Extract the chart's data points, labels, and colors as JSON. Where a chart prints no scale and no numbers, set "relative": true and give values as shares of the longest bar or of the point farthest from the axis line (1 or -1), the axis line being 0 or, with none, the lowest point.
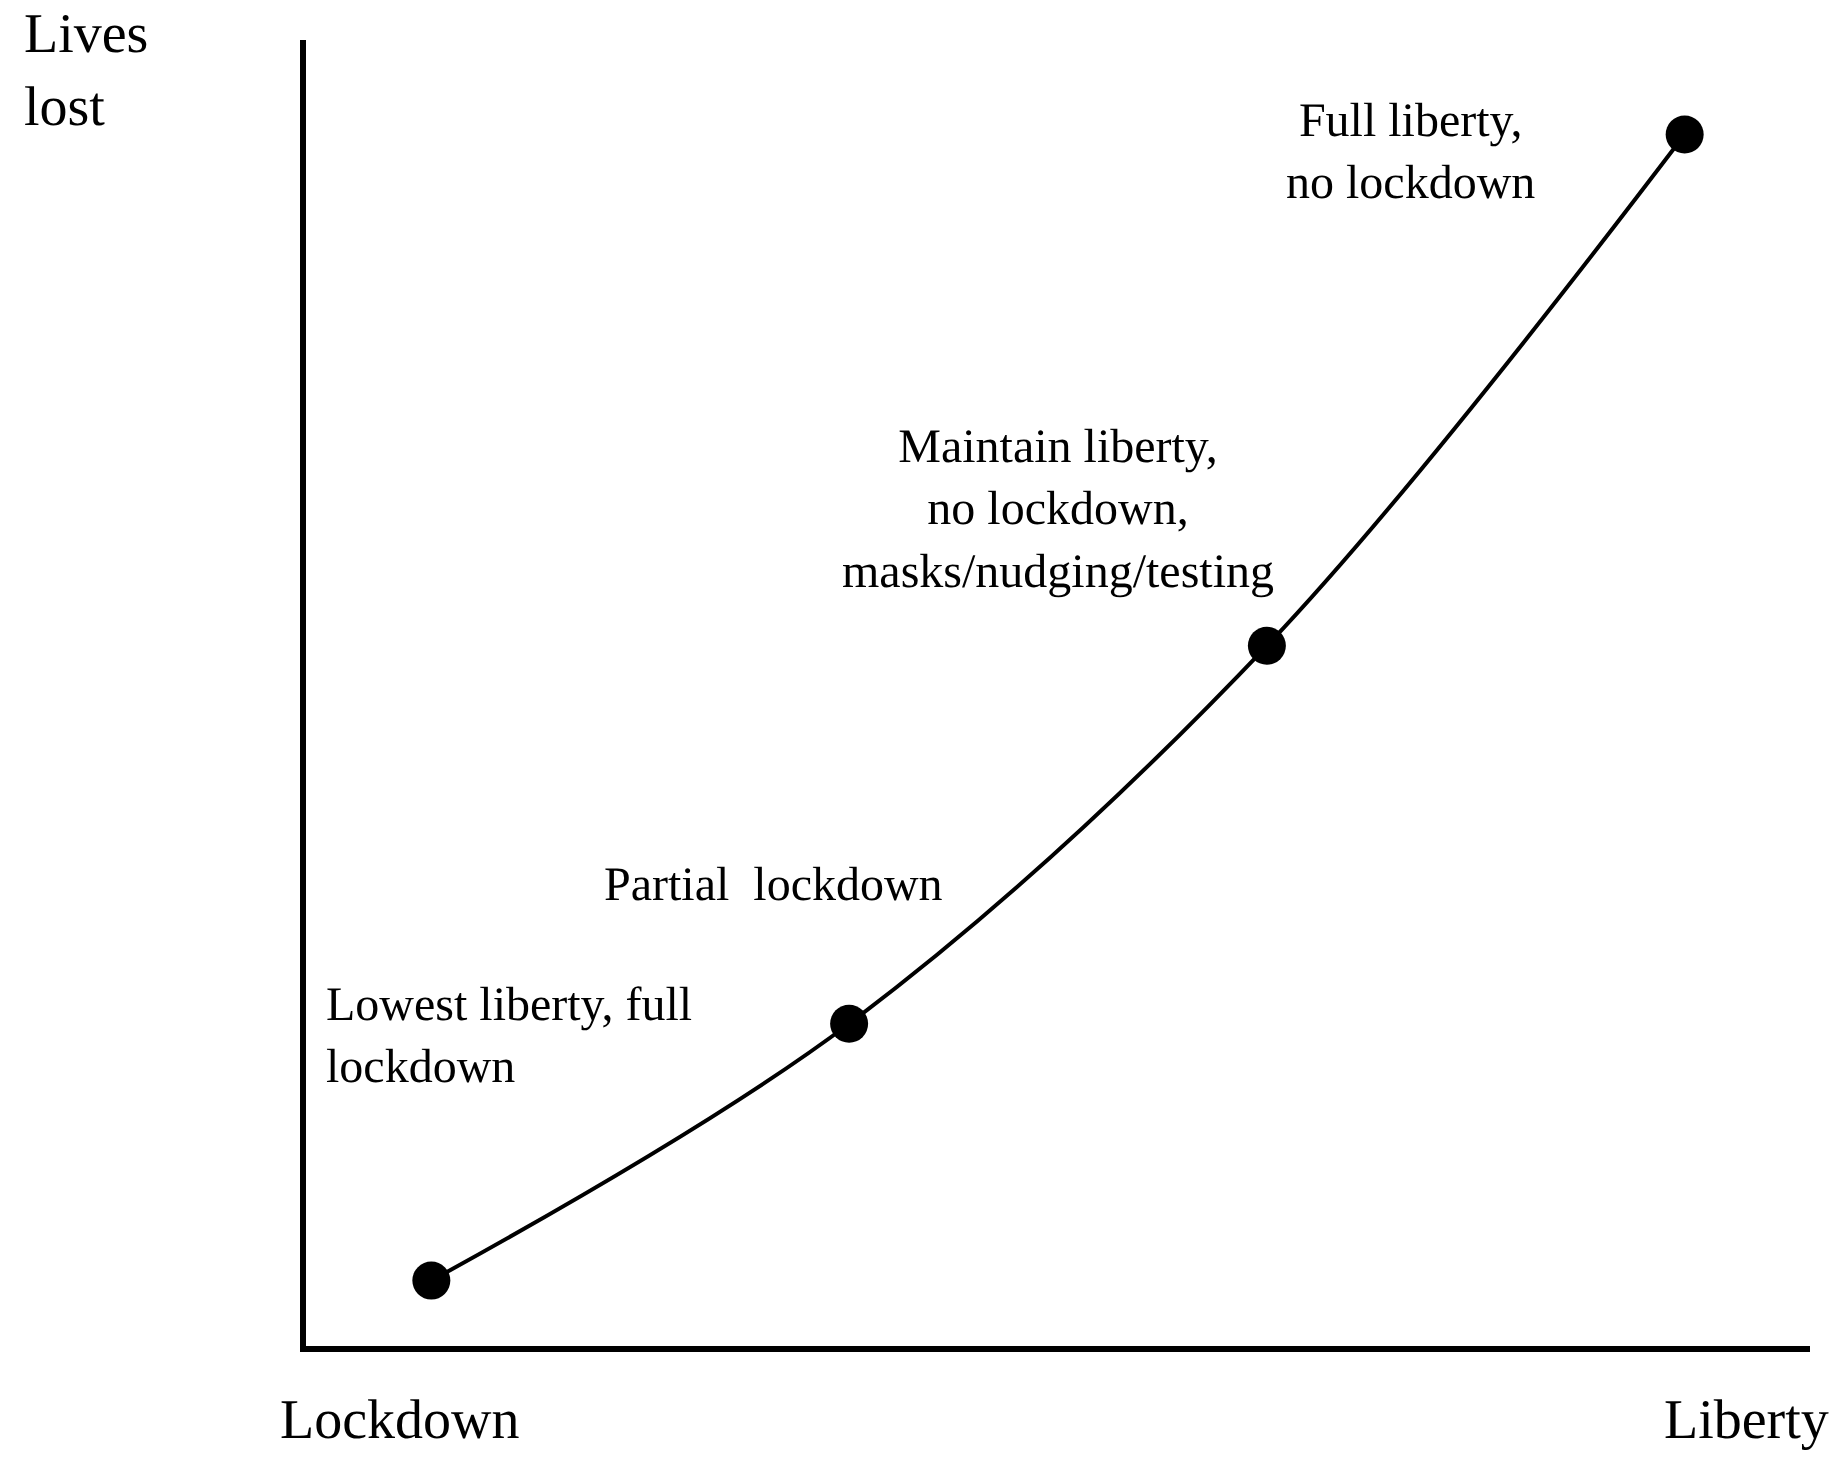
{
  "chart_data": {
    "type": "line",
    "relative": true,
    "ylabel": "Lives lost",
    "xlabel": "Liberty",
    "categories": [
      null,
      null,
      null,
      null
    ],
    "series": [
      {
        "color": "#000000",
        "values": [
          0.054,
          0.266,
          0.578,
          1
        ]
      }
    ],
    "marker": "circle",
    "line_style": "solid",
    "annotations": [
      "Lowest liberty, full\nlockdown",
      "Partial  lockdown",
      "Maintain liberty,\nno lockdown,\nmasks/nudging/testing",
      "Full liberty,\nno lockdown",
      "Lockdown"
    ]
  }
}
